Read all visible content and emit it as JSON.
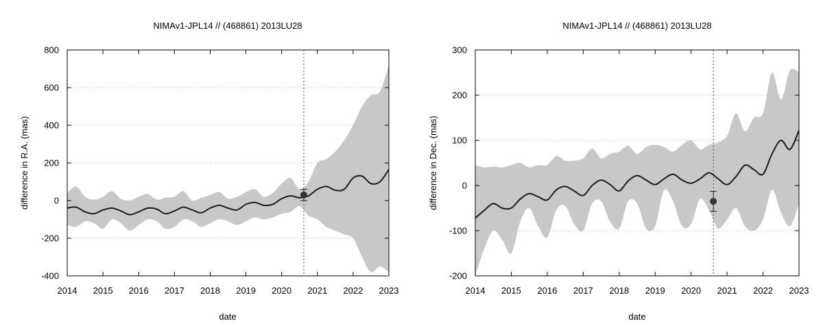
{
  "chart_data": [
    {
      "type": "line",
      "title": "NIMAv1-JPL14 // (468861) 2013LU28",
      "xlabel": "date",
      "ylabel": "difference in R.A. (mas)",
      "xlim": [
        2014,
        2023
      ],
      "ylim": [
        -400,
        800
      ],
      "xticks": [
        2014,
        2015,
        2016,
        2017,
        2018,
        2019,
        2020,
        2021,
        2022,
        2023
      ],
      "yticks": [
        -400,
        -200,
        0,
        200,
        400,
        600,
        800
      ],
      "grid": "horizontal dotted",
      "vline_x": 2020.62,
      "series": [
        {
          "role": "difference",
          "x": [
            2014.0,
            2014.25,
            2014.5,
            2014.75,
            2015.0,
            2015.25,
            2015.5,
            2015.75,
            2016.0,
            2016.25,
            2016.5,
            2016.75,
            2017.0,
            2017.25,
            2017.5,
            2017.75,
            2018.0,
            2018.25,
            2018.5,
            2018.75,
            2019.0,
            2019.25,
            2019.5,
            2019.75,
            2020.0,
            2020.25,
            2020.5,
            2020.75,
            2021.0,
            2021.25,
            2021.5,
            2021.75,
            2022.0,
            2022.25,
            2022.5,
            2022.75,
            2023.0
          ],
          "values": [
            -40,
            -35,
            -60,
            -70,
            -50,
            -40,
            -55,
            -75,
            -60,
            -40,
            -45,
            -70,
            -55,
            -35,
            -50,
            -65,
            -40,
            -25,
            -40,
            -50,
            -20,
            -10,
            -25,
            -20,
            10,
            25,
            15,
            25,
            60,
            75,
            55,
            60,
            120,
            130,
            90,
            100,
            165
          ]
        },
        {
          "role": "uncertainty-upper",
          "x": [
            2014.0,
            2014.25,
            2014.5,
            2014.75,
            2015.0,
            2015.25,
            2015.5,
            2015.75,
            2016.0,
            2016.25,
            2016.5,
            2016.75,
            2017.0,
            2017.25,
            2017.5,
            2017.75,
            2018.0,
            2018.25,
            2018.5,
            2018.75,
            2019.0,
            2019.25,
            2019.5,
            2019.75,
            2020.0,
            2020.25,
            2020.5,
            2020.75,
            2021.0,
            2021.25,
            2021.5,
            2021.75,
            2022.0,
            2022.25,
            2022.5,
            2022.75,
            2023.0
          ],
          "values": [
            40,
            75,
            20,
            5,
            20,
            50,
            10,
            0,
            20,
            35,
            5,
            15,
            20,
            50,
            0,
            15,
            30,
            45,
            10,
            20,
            45,
            60,
            20,
            40,
            90,
            120,
            60,
            100,
            200,
            220,
            260,
            320,
            400,
            500,
            560,
            580,
            720
          ]
        },
        {
          "role": "uncertainty-lower",
          "x": [
            2014.0,
            2014.25,
            2014.5,
            2014.75,
            2015.0,
            2015.25,
            2015.5,
            2015.75,
            2016.0,
            2016.25,
            2016.5,
            2016.75,
            2017.0,
            2017.25,
            2017.5,
            2017.75,
            2018.0,
            2018.25,
            2018.5,
            2018.75,
            2019.0,
            2019.25,
            2019.5,
            2019.75,
            2020.0,
            2020.25,
            2020.5,
            2020.75,
            2021.0,
            2021.25,
            2021.5,
            2021.75,
            2022.0,
            2022.25,
            2022.5,
            2022.75,
            2023.0
          ],
          "values": [
            -130,
            -140,
            -110,
            -120,
            -150,
            -100,
            -120,
            -160,
            -130,
            -100,
            -110,
            -150,
            -140,
            -100,
            -110,
            -140,
            -120,
            -100,
            -110,
            -130,
            -110,
            -90,
            -100,
            -90,
            -70,
            -60,
            -30,
            -80,
            -100,
            -140,
            -160,
            -180,
            -200,
            -300,
            -380,
            -350,
            -380
          ]
        }
      ],
      "points": [
        {
          "x": 2020.62,
          "y": 30,
          "error": 30
        }
      ]
    },
    {
      "type": "line",
      "title": "NIMAv1-JPL14 // (468861) 2013LU28",
      "xlabel": "date",
      "ylabel": "difference in Dec. (mas)",
      "xlim": [
        2014,
        2023
      ],
      "ylim": [
        -200,
        300
      ],
      "xticks": [
        2014,
        2015,
        2016,
        2017,
        2018,
        2019,
        2020,
        2021,
        2022,
        2023
      ],
      "yticks": [
        -200,
        -100,
        0,
        100,
        200,
        300
      ],
      "grid": "horizontal dotted",
      "vline_x": 2020.62,
      "series": [
        {
          "role": "difference",
          "x": [
            2014.0,
            2014.25,
            2014.5,
            2014.75,
            2015.0,
            2015.25,
            2015.5,
            2015.75,
            2016.0,
            2016.25,
            2016.5,
            2016.75,
            2017.0,
            2017.25,
            2017.5,
            2017.75,
            2018.0,
            2018.25,
            2018.5,
            2018.75,
            2019.0,
            2019.25,
            2019.5,
            2019.75,
            2020.0,
            2020.25,
            2020.5,
            2020.75,
            2021.0,
            2021.25,
            2021.5,
            2021.75,
            2022.0,
            2022.25,
            2022.5,
            2022.75,
            2023.0
          ],
          "values": [
            -72,
            -55,
            -40,
            -50,
            -50,
            -30,
            -18,
            -25,
            -32,
            -10,
            -2,
            -12,
            -22,
            0,
            12,
            2,
            -12,
            10,
            22,
            12,
            2,
            15,
            25,
            12,
            5,
            15,
            28,
            15,
            2,
            20,
            45,
            35,
            25,
            70,
            100,
            80,
            122
          ]
        },
        {
          "role": "uncertainty-upper",
          "x": [
            2014.0,
            2014.25,
            2014.5,
            2014.75,
            2015.0,
            2015.25,
            2015.5,
            2015.75,
            2016.0,
            2016.25,
            2016.5,
            2016.75,
            2017.0,
            2017.25,
            2017.5,
            2017.75,
            2018.0,
            2018.25,
            2018.5,
            2018.75,
            2019.0,
            2019.25,
            2019.5,
            2019.75,
            2020.0,
            2020.25,
            2020.5,
            2020.75,
            2021.0,
            2021.25,
            2021.5,
            2021.75,
            2022.0,
            2022.25,
            2022.5,
            2022.75,
            2023.0
          ],
          "values": [
            45,
            40,
            42,
            40,
            45,
            50,
            40,
            45,
            45,
            65,
            55,
            55,
            60,
            82,
            60,
            70,
            75,
            88,
            70,
            85,
            90,
            85,
            75,
            90,
            100,
            80,
            90,
            95,
            110,
            160,
            120,
            150,
            160,
            250,
            190,
            255,
            250
          ]
        },
        {
          "role": "uncertainty-lower",
          "x": [
            2014.0,
            2014.25,
            2014.5,
            2014.75,
            2015.0,
            2015.25,
            2015.5,
            2015.75,
            2016.0,
            2016.25,
            2016.5,
            2016.75,
            2017.0,
            2017.25,
            2017.5,
            2017.75,
            2018.0,
            2018.25,
            2018.5,
            2018.75,
            2019.0,
            2019.25,
            2019.5,
            2019.75,
            2020.0,
            2020.25,
            2020.5,
            2020.75,
            2021.0,
            2021.25,
            2021.5,
            2021.75,
            2022.0,
            2022.25,
            2022.5,
            2022.75,
            2023.0
          ],
          "values": [
            -200,
            -140,
            -100,
            -120,
            -150,
            -80,
            -50,
            -90,
            -115,
            -55,
            -45,
            -85,
            -100,
            -40,
            -35,
            -80,
            -95,
            -35,
            -40,
            -95,
            -90,
            -10,
            -35,
            -90,
            -85,
            -30,
            -55,
            -95,
            -75,
            -50,
            -90,
            -100,
            -75,
            -10,
            -60,
            -90,
            -40
          ]
        }
      ],
      "points": [
        {
          "x": 2020.62,
          "y": -35,
          "error": 22
        }
      ]
    }
  ]
}
